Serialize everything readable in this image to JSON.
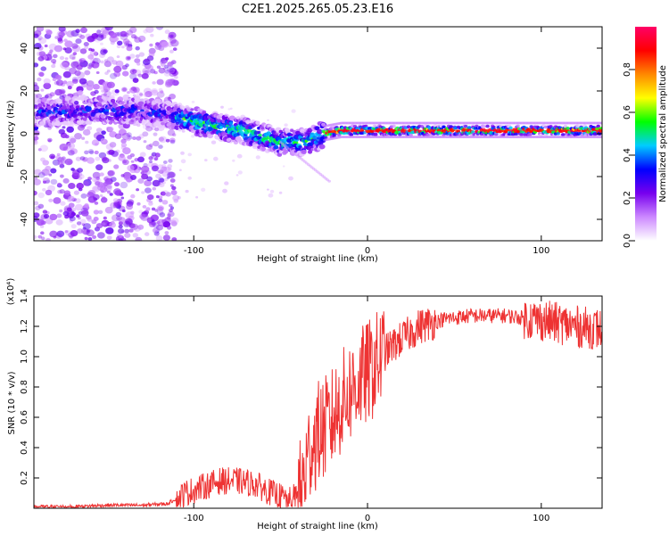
{
  "title": "C2E1.2025.265.05.23.E16",
  "chart_data": [
    {
      "type": "heatmap",
      "name": "spectrogram",
      "xlabel": "Height of straight line (km)",
      "ylabel": "Frequency (Hz)",
      "xlim": [
        -192,
        135
      ],
      "ylim": [
        -50,
        50
      ],
      "xticks": [
        -100,
        0,
        100
      ],
      "xtick_labels": [
        "-100",
        "0",
        "100"
      ],
      "yticks": [
        40,
        20,
        0,
        -20,
        -40
      ],
      "ytick_labels": [
        "40",
        "20",
        "0",
        "-20",
        "-40"
      ],
      "colorbar": {
        "label": "Normalized spectral amplitude",
        "range": [
          0,
          1
        ],
        "ticks": [
          0,
          0.2,
          0.4,
          0.6,
          0.8
        ],
        "tick_labels": [
          "0.0",
          "0.2",
          "0.4",
          "0.6",
          "0.8"
        ],
        "colors": [
          "#ffffff",
          "#cc88ff",
          "#7700ee",
          "#0000ff",
          "#00ccff",
          "#00ff00",
          "#ffff00",
          "#ff8800",
          "#ff0000",
          "#ff0066"
        ]
      },
      "signal_trend": [
        {
          "x": -190,
          "f": 10
        },
        {
          "x": -160,
          "f": 11
        },
        {
          "x": -130,
          "f": 11
        },
        {
          "x": -110,
          "f": 8
        },
        {
          "x": -90,
          "f": 4
        },
        {
          "x": -70,
          "f": 1
        },
        {
          "x": -50,
          "f": -4
        },
        {
          "x": -35,
          "f": -4
        },
        {
          "x": -25,
          "f": 0
        },
        {
          "x": -15,
          "f": 1.5
        },
        {
          "x": 0,
          "f": 1.5
        },
        {
          "x": 50,
          "f": 1.5
        },
        {
          "x": 135,
          "f": 1.5
        }
      ]
    },
    {
      "type": "line",
      "name": "snr",
      "xlabel": "Height of straight line (km)",
      "ylabel": "SNR (10 * v/v)",
      "scale_note": "(x10⁴)",
      "xlim": [
        -192,
        135
      ],
      "ylim": [
        0,
        1.4
      ],
      "xticks": [
        -100,
        0,
        100
      ],
      "xtick_labels": [
        "-100",
        "0",
        "100"
      ],
      "yticks": [
        0.2,
        0.4,
        0.6,
        0.8,
        1.0,
        1.2,
        1.4
      ],
      "ytick_labels": [
        "0.2",
        "0.4",
        "0.6",
        "0.8",
        "1.0",
        "1.2",
        "1.4"
      ],
      "color": "#ee3333",
      "series": [
        {
          "name": "SNR",
          "x": [
            -192,
            -170,
            -150,
            -130,
            -115,
            -105,
            -95,
            -85,
            -75,
            -65,
            -55,
            -45,
            -38,
            -33,
            -28,
            -22,
            -15,
            -8,
            -2,
            5,
            12,
            20,
            30,
            45,
            60,
            80,
            100,
            120,
            135
          ],
          "y": [
            0.01,
            0.01,
            0.02,
            0.02,
            0.03,
            0.1,
            0.14,
            0.18,
            0.18,
            0.16,
            0.1,
            0.05,
            0.12,
            0.4,
            0.5,
            0.55,
            0.7,
            0.8,
            0.87,
            0.95,
            1.05,
            1.12,
            1.2,
            1.25,
            1.27,
            1.27,
            1.24,
            1.2,
            1.18
          ]
        }
      ]
    }
  ]
}
